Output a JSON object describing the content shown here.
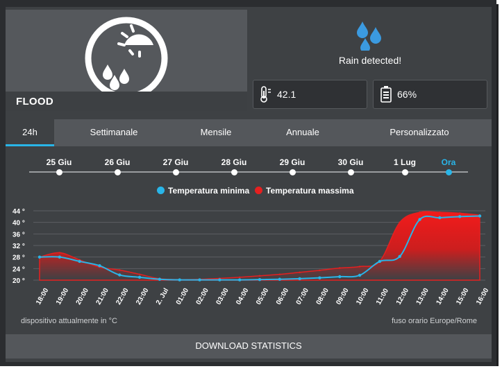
{
  "device": {
    "name": "FLOOD",
    "alert_text": "Rain detected!",
    "temperature": "42.1",
    "battery": "66%"
  },
  "tabs": [
    {
      "label": "24h",
      "active": true
    },
    {
      "label": "Settimanale"
    },
    {
      "label": "Mensile"
    },
    {
      "label": "Annuale"
    },
    {
      "label": "Personalizzato"
    }
  ],
  "timeline": [
    "25 Giu",
    "26 Giu",
    "27 Giu",
    "28 Giu",
    "29 Giu",
    "30 Giu",
    "1 Lug",
    "Ora"
  ],
  "legend": {
    "min": "Temperatura minima",
    "max": "Temperatura massima"
  },
  "colors": {
    "accent": "#29b5e8",
    "max_series": "#e62020",
    "background": "#3e4144"
  },
  "chart_data": {
    "type": "area",
    "x": [
      "18:00",
      "19:00",
      "20:00",
      "21:00",
      "22:00",
      "23:00",
      "2. Jul",
      "01:00",
      "02:00",
      "03:00",
      "04:00",
      "05:00",
      "06:00",
      "07:00",
      "08:00",
      "09:00",
      "10:00",
      "11:00",
      "12:00",
      "13:00",
      "14:00",
      "15:00",
      "16:00"
    ],
    "y_ticks": [
      "20 °",
      "24 °",
      "28 °",
      "32 °",
      "36 °",
      "40 °",
      "44 °"
    ],
    "ylim": [
      20,
      44
    ],
    "grid": true,
    "legend_position": "top-center",
    "series": [
      {
        "name": "Temperatura massima",
        "values": [
          28,
          29.5,
          27,
          24.5,
          23.5,
          22,
          20.5,
          20.2,
          20.3,
          20.6,
          21,
          21.5,
          22,
          22.7,
          23.4,
          24.2,
          24.7,
          26.5,
          40,
          43.5,
          43.5,
          43.2,
          42.5
        ]
      },
      {
        "name": "Temperatura minima",
        "values": [
          28,
          28,
          26.5,
          25,
          21.8,
          21,
          20.3,
          20.1,
          20.1,
          20.1,
          20.1,
          20.2,
          20.3,
          20.5,
          20.8,
          21.2,
          21.7,
          26.5,
          28.2,
          41,
          41.6,
          42,
          42.2
        ]
      }
    ]
  },
  "footer": {
    "left": "dispositivo attualmente in °C",
    "right": "fuso orario Europe/Rome"
  },
  "download_label": "DOWNLOAD STATISTICS"
}
